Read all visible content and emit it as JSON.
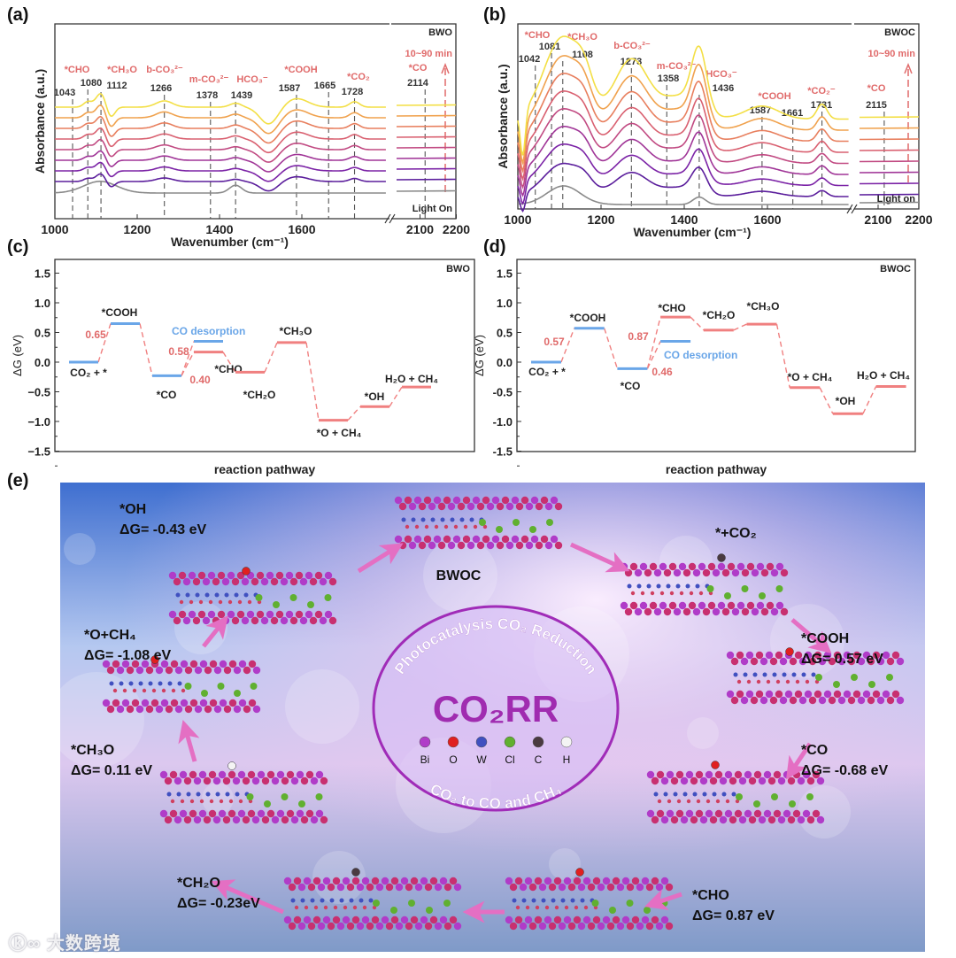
{
  "panels": {
    "a": "(a)",
    "b": "(b)",
    "c": "(c)",
    "d": "(d)",
    "e": "(e)"
  },
  "colors": {
    "series": [
      "#5b1e9c",
      "#7b23a6",
      "#a03597",
      "#c14a82",
      "#d96070",
      "#e87f5e",
      "#f0a24e",
      "#f3df45"
    ],
    "light_on": "#8a8a8a",
    "annotation_red": "#e06a6a",
    "desorption_blue": "#6aa6e8",
    "pathway_red": "#f08080",
    "arrow_pink": "#e46fc3"
  },
  "chart_data": [
    {
      "id": "a",
      "type": "line",
      "title": "BWO",
      "xlabel": "Wavenumber (cm⁻¹)",
      "ylabel": "Absorbance (a.u.)",
      "xticks": [
        "1000",
        "1200",
        "1400",
        "1600",
        "2100",
        "2200"
      ],
      "xtick_values": [
        1000,
        1200,
        1400,
        1600,
        2100,
        2200
      ],
      "xlim_main": [
        1000,
        1806
      ],
      "xlim_break": [
        2030,
        2200
      ],
      "time_label": "10~90 min",
      "light_label": "Light On",
      "series_count": 8,
      "series_scale": [
        0.45,
        0.5,
        0.55,
        0.6,
        0.65,
        0.7,
        0.75,
        0.8
      ],
      "peaks": [
        {
          "pos": 1112,
          "amp": 0.9,
          "width": 12
        },
        {
          "pos": 1080,
          "amp": 0.35,
          "width": 10
        },
        {
          "pos": 1135,
          "amp": -0.7,
          "width": 10
        },
        {
          "pos": 1266,
          "amp": 0.4,
          "width": 20
        },
        {
          "pos": 1439,
          "amp": 0.25,
          "width": 14
        },
        {
          "pos": 1520,
          "amp": -1.1,
          "width": 22
        },
        {
          "pos": 1587,
          "amp": 0.55,
          "width": 28
        },
        {
          "pos": 1728,
          "amp": 0.35,
          "width": 12
        }
      ],
      "light_on_peaks": [
        {
          "pos": 1110,
          "amp": 0.6,
          "width": 40
        },
        {
          "pos": 1439,
          "amp": 0.4,
          "width": 15
        }
      ],
      "peak_annotations": [
        {
          "species": "*CHO",
          "values": [
            "1043",
            "1080"
          ],
          "positions": [
            1043,
            1080
          ]
        },
        {
          "species": "*CH₃O",
          "values": [
            "1112"
          ],
          "positions": [
            1112
          ]
        },
        {
          "species": "b-CO₃²⁻",
          "values": [
            "1266"
          ],
          "positions": [
            1266
          ]
        },
        {
          "species": "m-CO₃²⁻",
          "values": [
            "1378"
          ],
          "positions": [
            1378
          ]
        },
        {
          "species": "HCO₃⁻",
          "values": [
            "1439"
          ],
          "positions": [
            1439
          ]
        },
        {
          "species": "*COOH",
          "values": [
            "1587",
            "1665"
          ],
          "positions": [
            1587,
            1665
          ]
        },
        {
          "species": "*CO₂",
          "values": [
            "1728"
          ],
          "positions": [
            1728
          ]
        },
        {
          "species": "*CO",
          "values": [
            "2114"
          ],
          "positions": [
            2114
          ]
        }
      ]
    },
    {
      "id": "b",
      "type": "line",
      "title": "BWOC",
      "xlabel": "Wavenumber (cm⁻¹)",
      "ylabel": "Absorbance (a.u.)",
      "xticks": [
        "1000",
        "1200",
        "1400",
        "1600",
        "2100",
        "2200"
      ],
      "xtick_values": [
        1000,
        1200,
        1400,
        1600,
        2100,
        2200
      ],
      "xlim_main": [
        1000,
        1795
      ],
      "xlim_break": [
        2070,
        2200
      ],
      "time_label": "10~90 min",
      "light_label": "Light on",
      "series_count": 8,
      "series_scale": [
        0.4,
        0.5,
        0.58,
        0.66,
        0.74,
        0.82,
        0.9,
        1.0
      ],
      "peaks": [
        {
          "pos": 1108,
          "amp": 2.2,
          "width": 45
        },
        {
          "pos": 1160,
          "amp": 0.6,
          "width": 20
        },
        {
          "pos": 1273,
          "amp": 1.6,
          "width": 40
        },
        {
          "pos": 1436,
          "amp": 1.6,
          "width": 18
        },
        {
          "pos": 1390,
          "amp": 0.6,
          "width": 45
        },
        {
          "pos": 1587,
          "amp": 0.35,
          "width": 40
        },
        {
          "pos": 1731,
          "amp": 0.4,
          "width": 12
        },
        {
          "pos": 1012,
          "amp": -1.2,
          "width": 6
        }
      ],
      "light_on_peaks": [
        {
          "pos": 1110,
          "amp": 0.5,
          "width": 40
        },
        {
          "pos": 1436,
          "amp": 0.2,
          "width": 15
        }
      ],
      "peak_annotations": [
        {
          "species": "*CHO",
          "values": [
            "1042",
            "1081"
          ],
          "positions": [
            1042,
            1081
          ]
        },
        {
          "species": "*CH₃O",
          "values": [
            "1108"
          ],
          "positions": [
            1108
          ]
        },
        {
          "species": "b-CO₃²⁻",
          "values": [
            "1273"
          ],
          "positions": [
            1273
          ]
        },
        {
          "species": "m-CO₃²⁻",
          "values": [
            "1358"
          ],
          "positions": [
            1358
          ]
        },
        {
          "species": "HCO₃⁻",
          "values": [
            "1436"
          ],
          "positions": [
            1436
          ]
        },
        {
          "species": "*COOH",
          "values": [
            "1587",
            "1661"
          ],
          "positions": [
            1587,
            1661
          ]
        },
        {
          "species": "*CO₂⁻",
          "values": [
            "1731"
          ],
          "positions": [
            1731
          ]
        },
        {
          "species": "*CO",
          "values": [
            "2115"
          ],
          "positions": [
            2115
          ]
        }
      ]
    },
    {
      "id": "c",
      "type": "line",
      "title": "BWO",
      "xlabel": "reaction pathway",
      "ylabel": "ΔG (eV)",
      "ylim": [
        -1.5,
        1.75
      ],
      "yticks": [
        "1.5",
        "1.0",
        "0.5",
        "0.0",
        "−0.5",
        "−1.0",
        "−1.5"
      ],
      "ytick_values": [
        1.5,
        1.0,
        0.5,
        0.0,
        -0.5,
        -1.0,
        -1.5
      ],
      "levels": [
        {
          "label": "CO₂ + *",
          "value": 0.0,
          "slot": 0,
          "color": "blue"
        },
        {
          "label": "*COOH",
          "value": 0.65,
          "slot": 1,
          "color": "blue"
        },
        {
          "label": "*CO",
          "value": -0.23,
          "slot": 2,
          "color": "blue"
        },
        {
          "label": "CO desorption",
          "value": 0.35,
          "slot": 3,
          "color": "blue"
        },
        {
          "label": "*CHO",
          "value": 0.17,
          "slot": 3,
          "color": "red"
        },
        {
          "label": "*CH₂O",
          "value": -0.17,
          "slot": 4,
          "color": "red"
        },
        {
          "label": "*CH₃O",
          "value": 0.33,
          "slot": 5,
          "color": "red"
        },
        {
          "label": "*O + CH₄",
          "value": -0.98,
          "slot": 6,
          "color": "red"
        },
        {
          "label": "*OH",
          "value": -0.75,
          "slot": 7,
          "color": "red"
        },
        {
          "label": "H₂O + CH₄",
          "value": -0.42,
          "slot": 8,
          "color": "red"
        }
      ],
      "barriers": [
        "0.65",
        "0.58",
        "0.40"
      ]
    },
    {
      "id": "d",
      "type": "line",
      "title": "BWOC",
      "xlabel": "reaction pathway",
      "ylabel": "ΔG (eV)",
      "ylim": [
        -1.5,
        1.75
      ],
      "yticks": [
        "1.5",
        "1.0",
        "0.5",
        "0.0",
        "-0.5",
        "-1.0",
        "-1.5"
      ],
      "ytick_values": [
        1.5,
        1.0,
        0.5,
        0.0,
        -0.5,
        -1.0,
        -1.5
      ],
      "levels": [
        {
          "label": "CO₂ + *",
          "value": 0.0,
          "slot": 0,
          "color": "blue"
        },
        {
          "label": "*COOH",
          "value": 0.57,
          "slot": 1,
          "color": "blue"
        },
        {
          "label": "*CO",
          "value": -0.11,
          "slot": 2,
          "color": "blue"
        },
        {
          "label": "CO desorption",
          "value": 0.35,
          "slot": 3,
          "color": "blue"
        },
        {
          "label": "*CHO",
          "value": 0.76,
          "slot": 3,
          "color": "red"
        },
        {
          "label": "*CH₂O",
          "value": 0.54,
          "slot": 4,
          "color": "red"
        },
        {
          "label": "*CH₃O",
          "value": 0.64,
          "slot": 5,
          "color": "red"
        },
        {
          "label": "*O + CH₄",
          "value": -0.43,
          "slot": 6,
          "color": "red"
        },
        {
          "label": "*OH",
          "value": -0.87,
          "slot": 7,
          "color": "red"
        },
        {
          "label": "H₂O + CH₄",
          "value": -0.41,
          "slot": 8,
          "color": "red"
        }
      ],
      "barriers": [
        "0.57",
        "0.87",
        "0.46"
      ]
    }
  ],
  "cycle": {
    "center_title": "CO₂RR",
    "ring_top": "Photocatalysis CO₂ Reduction",
    "ring_bottom": "CO₂ to CO and CH₄",
    "legend": [
      {
        "symbol": "Bi",
        "color": "#b03cc8"
      },
      {
        "symbol": "O",
        "color": "#e02020"
      },
      {
        "symbol": "W",
        "color": "#4050c0"
      },
      {
        "symbol": "Cl",
        "color": "#60b030"
      },
      {
        "symbol": "C",
        "color": "#4a3a40"
      },
      {
        "symbol": "H",
        "color": "#f4f4f4"
      }
    ],
    "steps": [
      {
        "name": "BWOC",
        "dg": ""
      },
      {
        "name": "*+CO₂",
        "dg": ""
      },
      {
        "name": "*COOH",
        "dg": "ΔG= 0.57 eV"
      },
      {
        "name": "*CO",
        "dg": "ΔG= -0.68 eV"
      },
      {
        "name": "*CHO",
        "dg": "ΔG= 0.87 eV"
      },
      {
        "name": "*CH₂O",
        "dg": "ΔG= -0.23eV"
      },
      {
        "name": "*CH₃O",
        "dg": "ΔG= 0.11 eV"
      },
      {
        "name": "*O+CH₄",
        "dg": "ΔG= -1.08 eV"
      },
      {
        "name": "*OH",
        "dg": "ΔG= -0.43 eV"
      }
    ]
  },
  "watermark": "大数跨境"
}
